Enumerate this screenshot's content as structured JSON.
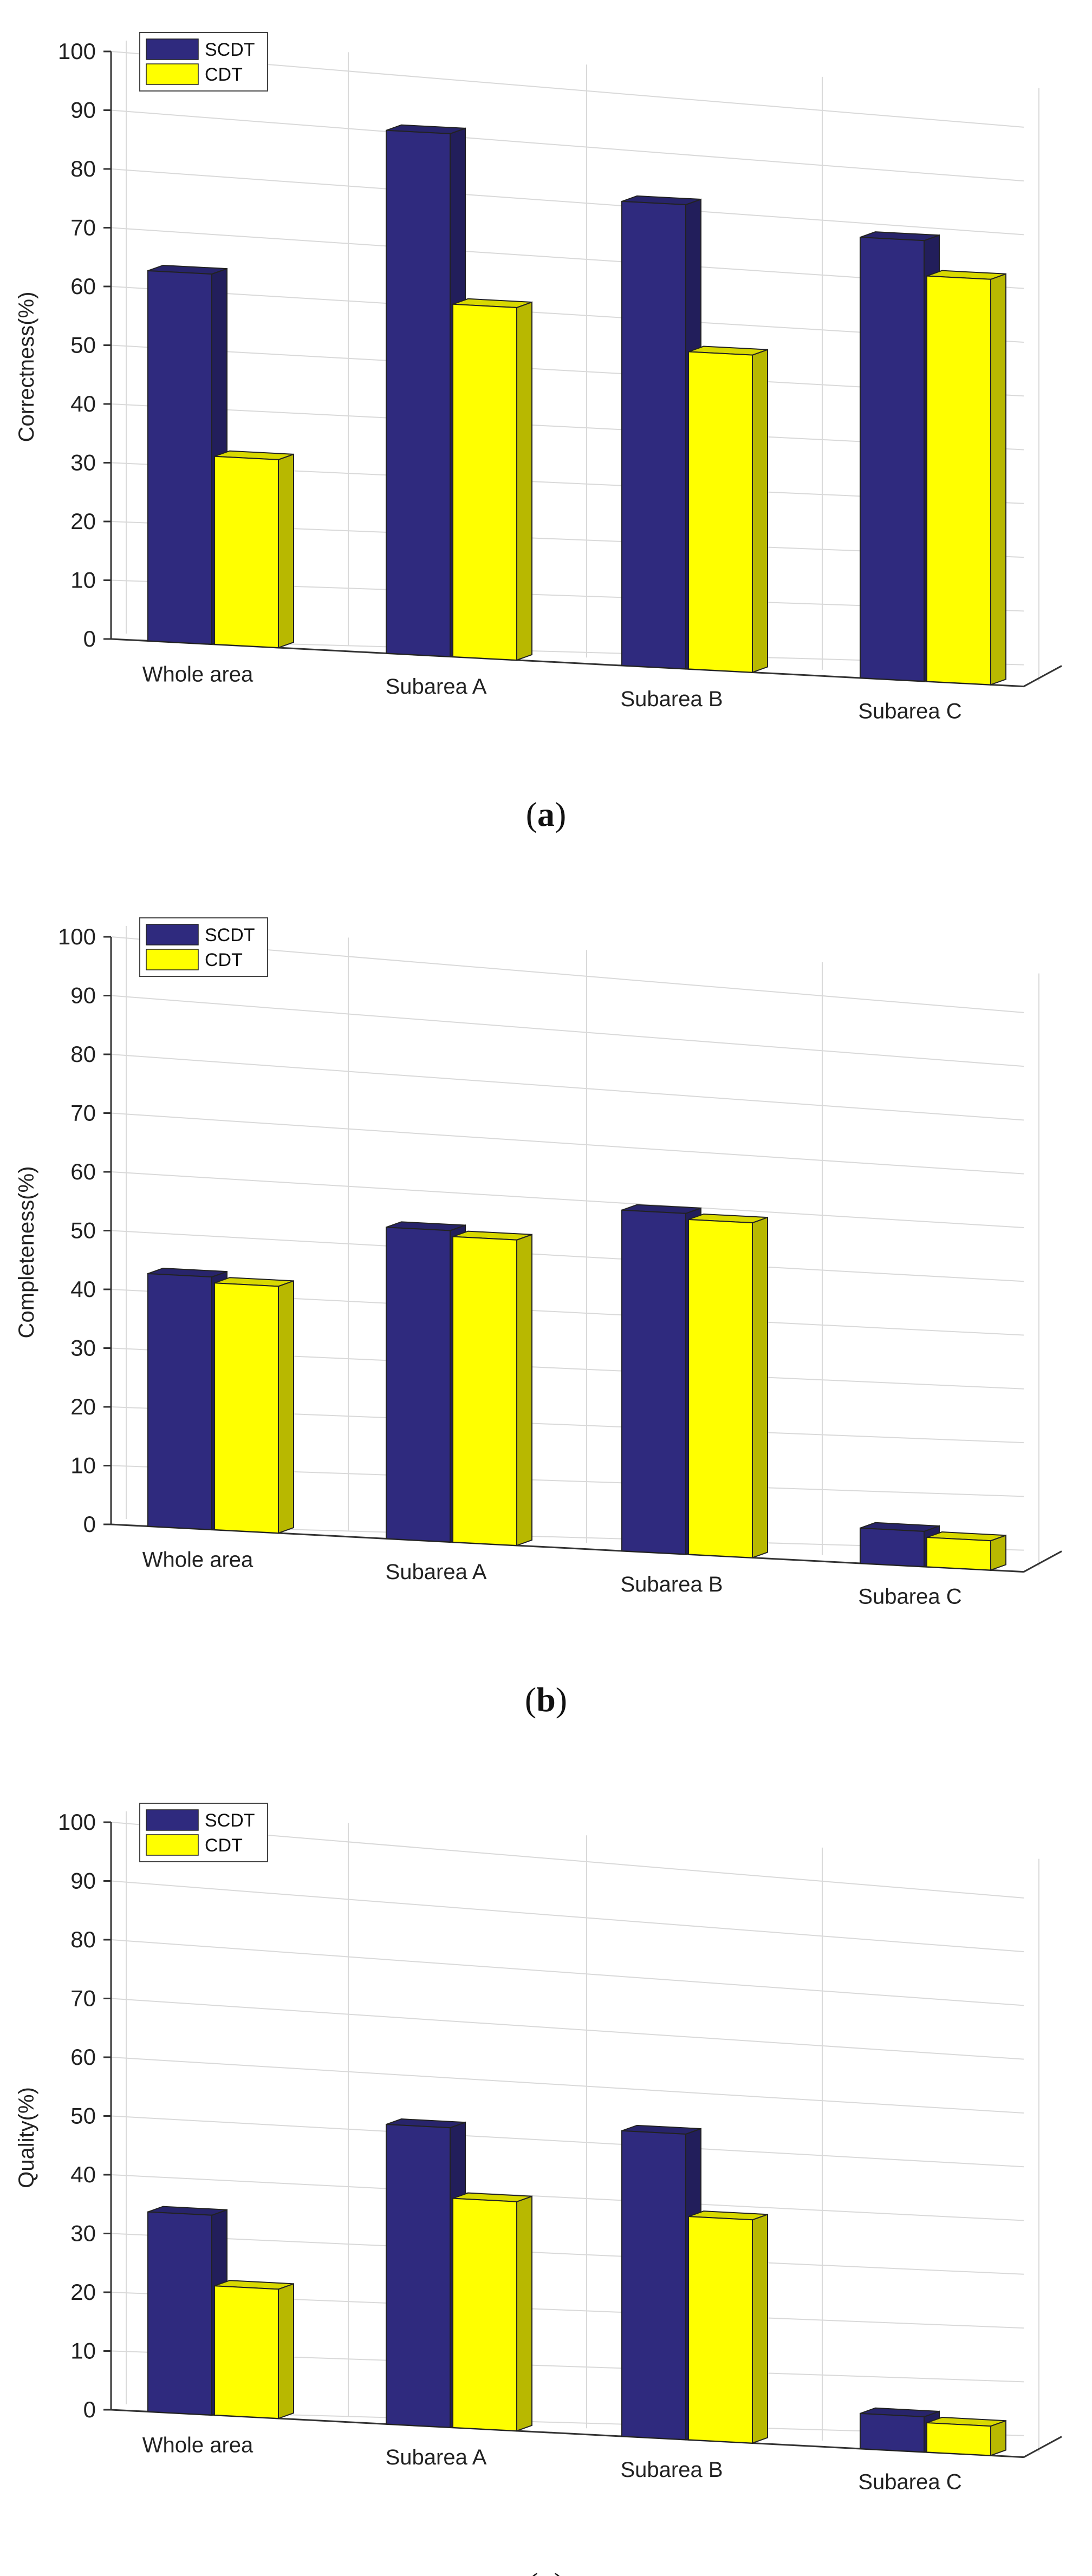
{
  "colors": {
    "scdt": "#2f2a7e",
    "cdt": "#ffff00",
    "grid": "#d9d9d9",
    "axis": "#333333"
  },
  "chart_data": [
    {
      "type": "bar",
      "style": "3d-grouped",
      "panel_label": "a",
      "categories": [
        "Whole area",
        "Subarea A",
        "Subarea B",
        "Subarea C"
      ],
      "series": [
        {
          "name": "SCDT",
          "values": [
            63,
            89,
            79,
            75
          ]
        },
        {
          "name": "CDT",
          "values": [
            32,
            60,
            54,
            69
          ]
        }
      ],
      "ylabel": "Correctness(%)",
      "ylim": [
        0,
        100
      ],
      "yticks": [
        "0",
        "10",
        "20",
        "30",
        "40",
        "50",
        "60",
        "70",
        "80",
        "90",
        "100"
      ],
      "grid": true,
      "legend": "top-left"
    },
    {
      "type": "bar",
      "style": "3d-grouped",
      "panel_label": "b",
      "categories": [
        "Whole area",
        "Subarea A",
        "Subarea B",
        "Subarea C"
      ],
      "series": [
        {
          "name": "SCDT",
          "values": [
            43,
            53,
            58,
            6
          ]
        },
        {
          "name": "CDT",
          "values": [
            42,
            52,
            57,
            5
          ]
        }
      ],
      "ylabel": "Completeness(%)",
      "ylim": [
        0,
        100
      ],
      "yticks": [
        "0",
        "10",
        "20",
        "30",
        "40",
        "50",
        "60",
        "70",
        "80",
        "90",
        "100"
      ],
      "grid": true,
      "legend": "top-left"
    },
    {
      "type": "bar",
      "style": "3d-grouped",
      "panel_label": "c",
      "categories": [
        "Whole area",
        "Subarea A",
        "Subarea B",
        "Subarea C"
      ],
      "series": [
        {
          "name": "SCDT",
          "values": [
            34,
            51,
            52,
            6
          ]
        },
        {
          "name": "CDT",
          "values": [
            22,
            39,
            38,
            5
          ]
        }
      ],
      "ylabel": "Quality(%)",
      "ylim": [
        0,
        100
      ],
      "yticks": [
        "0",
        "10",
        "20",
        "30",
        "40",
        "50",
        "60",
        "70",
        "80",
        "90",
        "100"
      ],
      "grid": true,
      "legend": "top-left"
    }
  ]
}
